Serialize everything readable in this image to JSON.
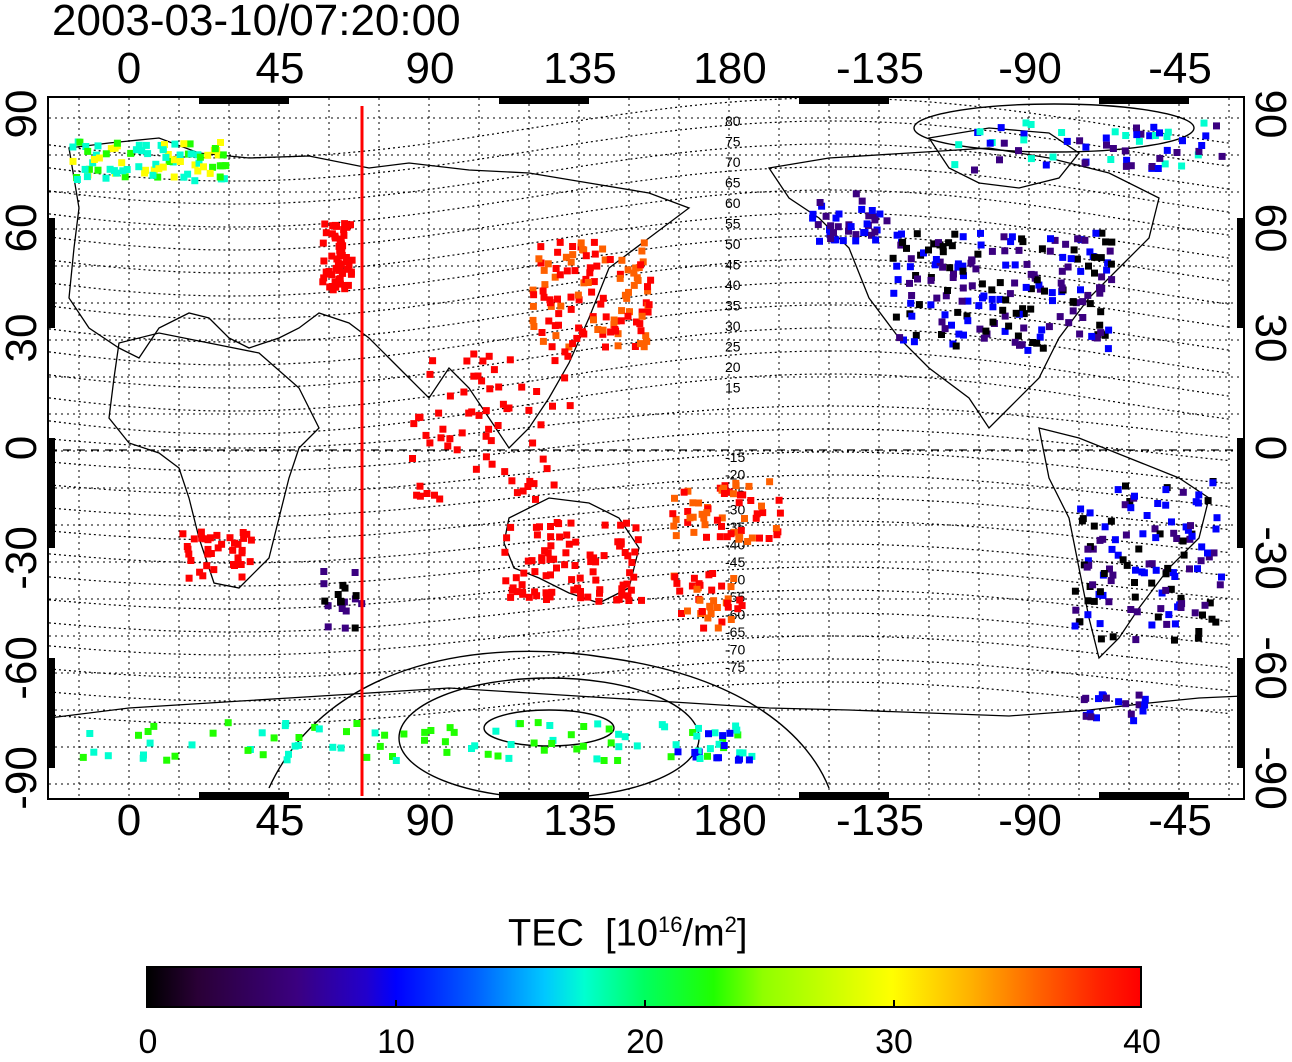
{
  "map": {
    "timestamp": "2003-03-10/07:20:00",
    "lon_ticks": [
      "0",
      "45",
      "90",
      "135",
      "180",
      "-135",
      "-90",
      "-45"
    ],
    "lat_ticks": [
      "90",
      "60",
      "30",
      "0",
      "-30",
      "-60",
      "-90"
    ],
    "magnetic_latitude_labels": [
      "80",
      "75",
      "70",
      "65",
      "60",
      "55",
      "50",
      "45",
      "40",
      "35",
      "30",
      "25",
      "20",
      "15",
      "-15",
      "-20",
      "-25",
      "-30",
      "-35",
      "-40",
      "-45",
      "-50",
      "-55",
      "-60",
      "-65",
      "-70",
      "-75"
    ],
    "terminator_line_color": "#ff0000",
    "colorbar": {
      "title": "TEC",
      "unit_base": "[10",
      "unit_exp": "16",
      "unit_mid": "/m",
      "unit_exp2": "2",
      "unit_end": "]",
      "ticks": [
        "0",
        "10",
        "20",
        "30",
        "40"
      ],
      "colors": [
        "#000000",
        "#3b0080",
        "#0000ff",
        "#00ffd0",
        "#20ff00",
        "#ffff00",
        "#ff6000",
        "#ff0000"
      ]
    }
  }
}
